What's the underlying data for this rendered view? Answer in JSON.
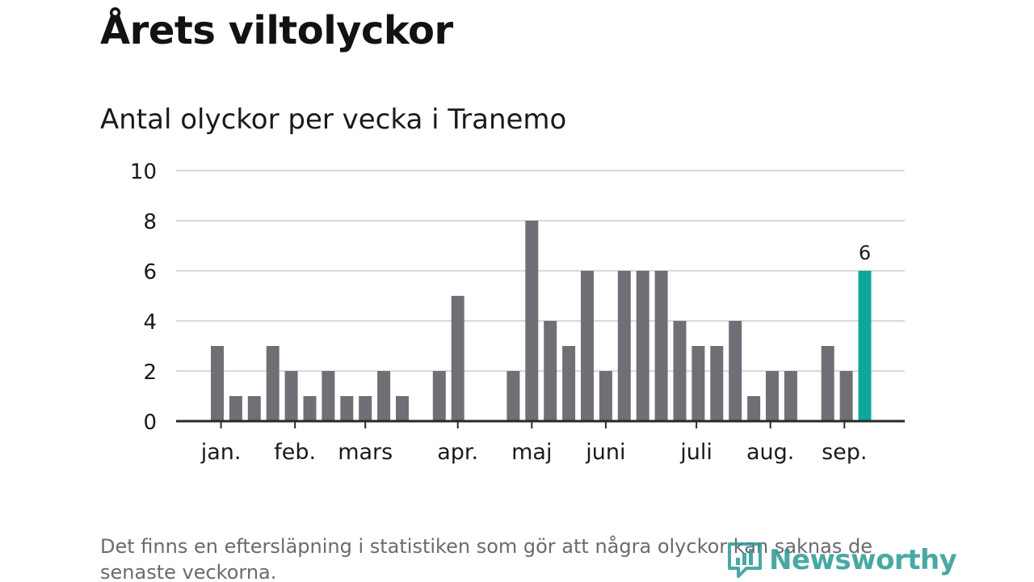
{
  "title": "Årets viltolyckor",
  "subtitle": "Antal olyckor per vecka i Tranemo",
  "footnote": "Det finns en eftersläpning i statistiken som gör att några olyckor kan saknas de senaste veckorna.",
  "logo_text": "Newsworthy",
  "colors": {
    "bar": "#706f75",
    "highlight": "#0ea89a",
    "grid": "#d9d9d9",
    "axis": "#2a2a2a",
    "label": "#1a1a1a"
  },
  "chart_data": {
    "type": "bar",
    "title": "Antal olyckor per vecka i Tranemo",
    "xlabel": "",
    "ylabel": "",
    "ylim": [
      0,
      10
    ],
    "yticks": [
      0,
      2,
      4,
      6,
      8,
      10
    ],
    "grid": true,
    "weeks": [
      1,
      2,
      3,
      4,
      5,
      6,
      7,
      8,
      9,
      10,
      11,
      12,
      13,
      14,
      15,
      16,
      17,
      18,
      19,
      20,
      21,
      22,
      23,
      24,
      25,
      26,
      27,
      28,
      29,
      30,
      31,
      32,
      33,
      34,
      35,
      36,
      37,
      38,
      39
    ],
    "values": [
      3,
      1,
      1,
      3,
      2,
      1,
      2,
      1,
      1,
      2,
      1,
      0,
      2,
      5,
      0,
      0,
      2,
      8,
      4,
      3,
      6,
      2,
      6,
      6,
      6,
      4,
      3,
      3,
      4,
      1,
      2,
      2,
      0,
      3,
      2,
      6,
      null,
      null,
      null
    ],
    "month_labels": [
      {
        "label": "jan.",
        "week": 1.2
      },
      {
        "label": "feb.",
        "week": 5.2
      },
      {
        "label": "mars",
        "week": 9.0
      },
      {
        "label": "apr.",
        "week": 14.0
      },
      {
        "label": "maj",
        "week": 18.0
      },
      {
        "label": "juni",
        "week": 22.0
      },
      {
        "label": "juli",
        "week": 26.9
      },
      {
        "label": "aug.",
        "week": 30.9
      },
      {
        "label": "sep.",
        "week": 34.9
      }
    ],
    "highlight_week": 36,
    "highlight_label": "6"
  }
}
